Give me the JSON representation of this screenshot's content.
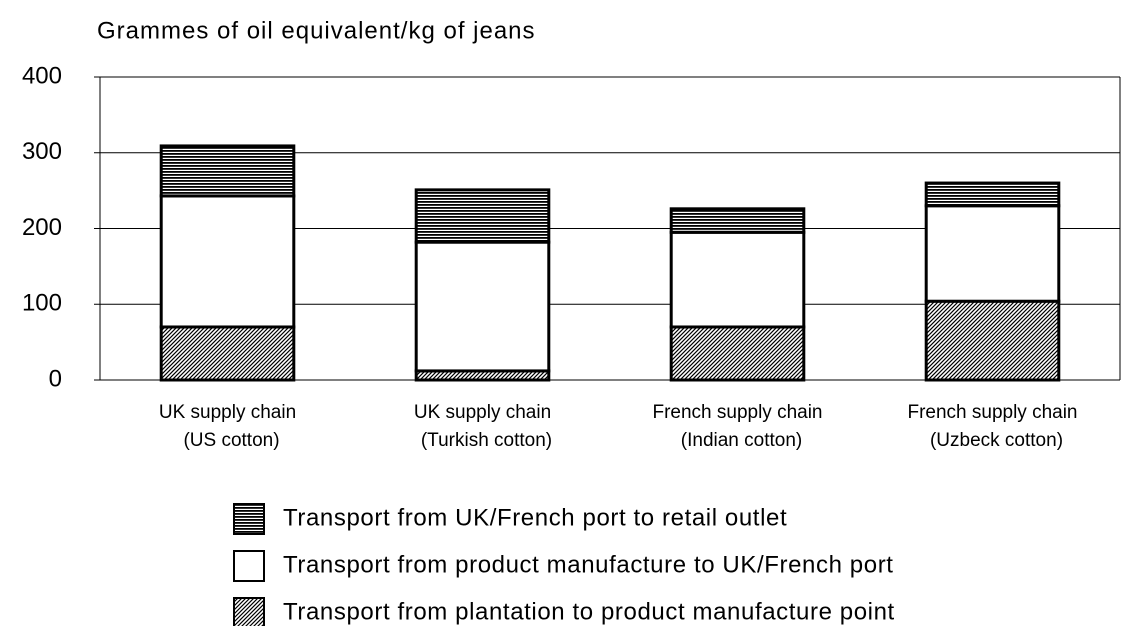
{
  "chart_data": {
    "type": "stacked_bar",
    "title": "Grammes of oil equivalent/kg of jeans",
    "categories": [
      [
        "UK supply chain",
        "(US cotton)"
      ],
      [
        "UK supply chain",
        "(Turkish cotton)"
      ],
      [
        "French supply chain",
        "(Indian cotton)"
      ],
      [
        "French supply chain",
        "(Uzbeck cotton)"
      ]
    ],
    "series": [
      {
        "name": "Transport from plantation to product manufacture point",
        "color": "#000000",
        "pattern": "diagonal",
        "values": [
          70,
          12,
          70,
          104
        ]
      },
      {
        "name": "Transport from product manufacture to UK/French port",
        "color": "#ffffff",
        "pattern": "none",
        "values": [
          173,
          170,
          125,
          126
        ]
      },
      {
        "name": "Transport from UK/French port to retail outlet",
        "color": "#000000",
        "pattern": "horizontal",
        "values": [
          66,
          69,
          31,
          30
        ]
      }
    ],
    "ylim": [
      0,
      400
    ],
    "yticks": [
      0,
      100,
      200,
      300,
      400
    ],
    "grid": true
  }
}
